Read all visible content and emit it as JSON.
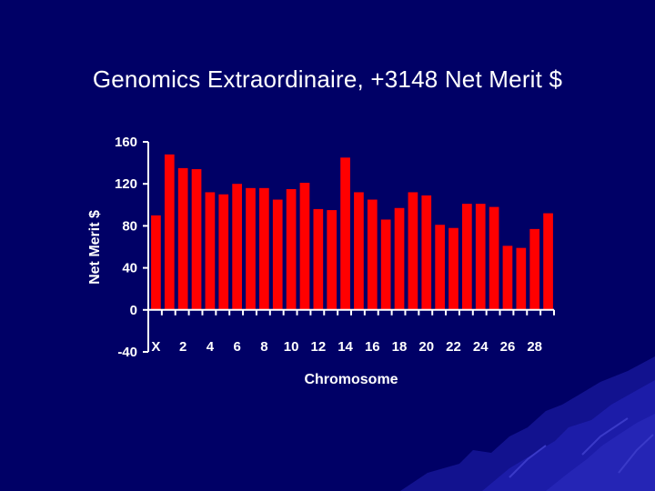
{
  "slide": {
    "title": "Genomics Extraordinaire, +3148 Net Merit $"
  },
  "colors": {
    "background": "#000066",
    "bar": "#ff0000",
    "axis": "#ffffff",
    "text": "#ffffff",
    "mountain": "#1a1aa8"
  },
  "chart_data": {
    "type": "bar",
    "title": "",
    "xlabel": "Chromosome",
    "ylabel": "Net Merit $",
    "ylim": [
      -40,
      160
    ],
    "yticks": [
      -40,
      0,
      40,
      80,
      120,
      160
    ],
    "grid": false,
    "legend": "none",
    "categories": [
      "X",
      "1",
      "2",
      "3",
      "4",
      "5",
      "6",
      "7",
      "8",
      "9",
      "10",
      "11",
      "12",
      "13",
      "14",
      "15",
      "16",
      "17",
      "18",
      "19",
      "20",
      "21",
      "22",
      "23",
      "24",
      "25",
      "26",
      "27",
      "28",
      "29"
    ],
    "tick_labels": [
      {
        "index": 0,
        "label": "X"
      },
      {
        "index": 2,
        "label": "2"
      },
      {
        "index": 4,
        "label": "4"
      },
      {
        "index": 6,
        "label": "6"
      },
      {
        "index": 8,
        "label": "8"
      },
      {
        "index": 10,
        "label": "10"
      },
      {
        "index": 12,
        "label": "12"
      },
      {
        "index": 14,
        "label": "14"
      },
      {
        "index": 16,
        "label": "16"
      },
      {
        "index": 18,
        "label": "18"
      },
      {
        "index": 20,
        "label": "20"
      },
      {
        "index": 22,
        "label": "22"
      },
      {
        "index": 24,
        "label": "24"
      },
      {
        "index": 26,
        "label": "26"
      },
      {
        "index": 28,
        "label": "28"
      }
    ],
    "values": [
      90,
      148,
      135,
      134,
      112,
      110,
      120,
      116,
      116,
      105,
      115,
      121,
      96,
      95,
      145,
      112,
      105,
      86,
      97,
      112,
      109,
      81,
      78,
      101,
      101,
      98,
      61,
      59,
      77,
      92
    ]
  }
}
